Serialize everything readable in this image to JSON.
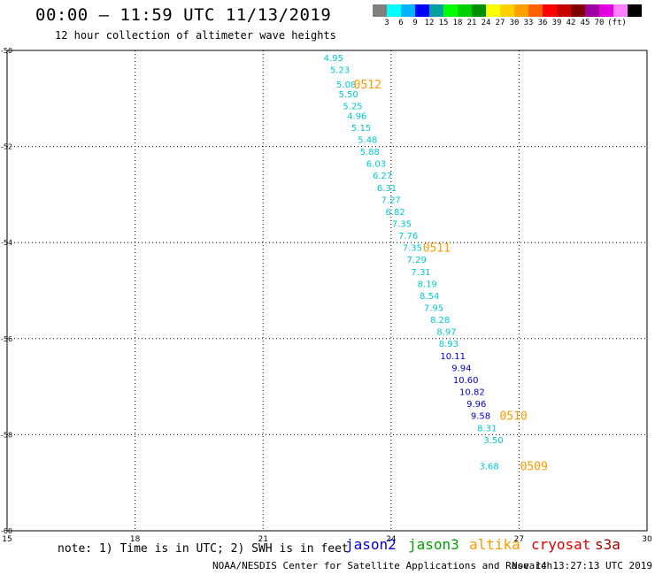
{
  "header": {
    "title": "00:00 – 11:59 UTC 11/13/2019",
    "subtitle": "12 hour collection of altimeter wave heights"
  },
  "legend": {
    "colors": [
      "#808080",
      "#00ffff",
      "#00b4ff",
      "#0000ff",
      "#00a0a0",
      "#00ff00",
      "#00d000",
      "#009000",
      "#ffff00",
      "#ffd000",
      "#ffa000",
      "#ff6000",
      "#ff0000",
      "#c80000",
      "#800000",
      "#a000a0",
      "#e000e0",
      "#ff80ff",
      "#000000"
    ],
    "labels": [
      "3",
      "6",
      "9",
      "12",
      "15",
      "18",
      "21",
      "24",
      "27",
      "30",
      "33",
      "36",
      "39",
      "42",
      "45",
      "70",
      "(ft)"
    ]
  },
  "chart_data": {
    "type": "scatter",
    "x_ticks": [
      15,
      18,
      21,
      24,
      27,
      30
    ],
    "y_ticks": [
      -50,
      -52,
      -54,
      -56,
      -58,
      -60
    ],
    "xlim": [
      15,
      30
    ],
    "ylim": [
      -60,
      -50
    ],
    "grid": true,
    "track_colors": {
      "cyan": "#00c8d4",
      "blue": "#0000c0"
    },
    "points": [
      {
        "x": 22.65,
        "y": -50.15,
        "label": "4.95",
        "color": "cyan"
      },
      {
        "x": 22.8,
        "y": -50.4,
        "label": "5.23",
        "color": "cyan"
      },
      {
        "x": 22.95,
        "y": -50.7,
        "label": "5.08",
        "color": "cyan"
      },
      {
        "x": 23.0,
        "y": -50.9,
        "label": "5.50",
        "color": "cyan"
      },
      {
        "x": 23.1,
        "y": -51.15,
        "label": "5.25",
        "color": "cyan"
      },
      {
        "x": 23.2,
        "y": -51.35,
        "label": "4.96",
        "color": "cyan"
      },
      {
        "x": 23.3,
        "y": -51.6,
        "label": "5.15",
        "color": "cyan"
      },
      {
        "x": 23.45,
        "y": -51.85,
        "label": "5.48",
        "color": "cyan"
      },
      {
        "x": 23.5,
        "y": -52.1,
        "label": "5.88",
        "color": "cyan"
      },
      {
        "x": 23.65,
        "y": -52.35,
        "label": "6.03",
        "color": "cyan"
      },
      {
        "x": 23.8,
        "y": -52.6,
        "label": "6.27",
        "color": "cyan"
      },
      {
        "x": 23.9,
        "y": -52.85,
        "label": "6.31",
        "color": "cyan"
      },
      {
        "x": 24.0,
        "y": -53.1,
        "label": "7.27",
        "color": "cyan"
      },
      {
        "x": 24.1,
        "y": -53.35,
        "label": "6.82",
        "color": "cyan"
      },
      {
        "x": 24.25,
        "y": -53.6,
        "label": "7.35",
        "color": "cyan"
      },
      {
        "x": 24.4,
        "y": -53.85,
        "label": "7.76",
        "color": "cyan"
      },
      {
        "x": 24.5,
        "y": -54.1,
        "label": "7.35",
        "color": "cyan"
      },
      {
        "x": 24.6,
        "y": -54.35,
        "label": "7.29",
        "color": "cyan"
      },
      {
        "x": 24.7,
        "y": -54.6,
        "label": "7.31",
        "color": "cyan"
      },
      {
        "x": 24.85,
        "y": -54.85,
        "label": "8.19",
        "color": "cyan"
      },
      {
        "x": 24.9,
        "y": -55.1,
        "label": "8.54",
        "color": "cyan"
      },
      {
        "x": 25.0,
        "y": -55.35,
        "label": "7.95",
        "color": "cyan"
      },
      {
        "x": 25.15,
        "y": -55.6,
        "label": "8.28",
        "color": "cyan"
      },
      {
        "x": 25.3,
        "y": -55.85,
        "label": "8.97",
        "color": "cyan"
      },
      {
        "x": 25.35,
        "y": -56.1,
        "label": "8.93",
        "color": "cyan"
      },
      {
        "x": 25.45,
        "y": -56.35,
        "label": "10.11",
        "color": "blue"
      },
      {
        "x": 25.65,
        "y": -56.6,
        "label": "9.94",
        "color": "blue"
      },
      {
        "x": 25.75,
        "y": -56.85,
        "label": "10.60",
        "color": "blue"
      },
      {
        "x": 25.9,
        "y": -57.1,
        "label": "10.82",
        "color": "blue"
      },
      {
        "x": 26.0,
        "y": -57.35,
        "label": "9.96",
        "color": "blue"
      },
      {
        "x": 26.1,
        "y": -57.6,
        "label": "9.58",
        "color": "blue"
      },
      {
        "x": 26.25,
        "y": -57.85,
        "label": "8.31",
        "color": "cyan"
      },
      {
        "x": 26.4,
        "y": -58.1,
        "label": "3.50",
        "color": "cyan"
      },
      {
        "x": 26.3,
        "y": -58.65,
        "label": "3.68",
        "color": "cyan"
      }
    ],
    "times": [
      {
        "x": 23.45,
        "y": -50.7,
        "label": "0512"
      },
      {
        "x": 25.07,
        "y": -54.1,
        "label": "0511"
      },
      {
        "x": 26.87,
        "y": -57.6,
        "label": "0510"
      },
      {
        "x": 27.35,
        "y": -58.65,
        "label": "0509"
      }
    ]
  },
  "footer": {
    "note": "note: 1) Time is in UTC; 2) SWH is in feet",
    "satellites": [
      {
        "name": "jason2",
        "color": "#0000c8"
      },
      {
        "name": "jason3",
        "color": "#00a000"
      },
      {
        "name": "altika",
        "color": "#ff9900"
      },
      {
        "name": "cryosat",
        "color": "#e00000"
      },
      {
        "name": "s3a",
        "color": "#a00000"
      }
    ],
    "credit": "NOAA/NESDIS Center for Satellite Applications and Research",
    "timestamp": "Nov 14 13:27:13 UTC 2019"
  }
}
